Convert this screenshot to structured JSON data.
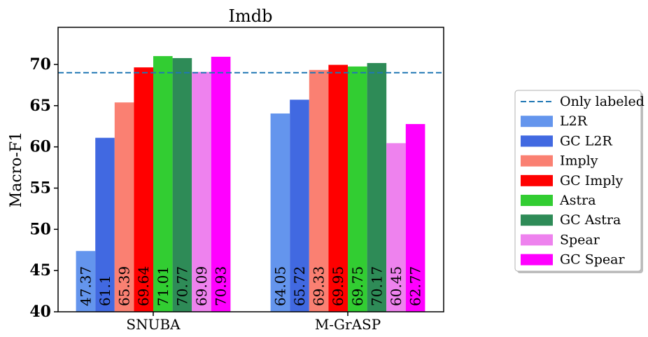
{
  "chart_data": {
    "type": "bar",
    "title": "Imdb",
    "xlabel": "",
    "ylabel": "Macro-F1",
    "ylim": [
      40,
      74.5
    ],
    "yticks": [
      40,
      45,
      50,
      55,
      60,
      65,
      70
    ],
    "categories": [
      "SNUBA",
      "M-GrASP"
    ],
    "series": [
      {
        "name": "L2R",
        "color": "#6495ed",
        "values": [
          47.37,
          64.05
        ],
        "labels": [
          "47.37",
          "64.05"
        ]
      },
      {
        "name": "GC L2R",
        "color": "#4169e1",
        "values": [
          61.1,
          65.72
        ],
        "labels": [
          "61.1",
          "65.72"
        ]
      },
      {
        "name": "Imply",
        "color": "#fa8072",
        "values": [
          65.39,
          69.33
        ],
        "labels": [
          "65.39",
          "69.33"
        ]
      },
      {
        "name": "GC Imply",
        "color": "#ff0000",
        "values": [
          69.64,
          69.95
        ],
        "labels": [
          "69.64",
          "69.95"
        ]
      },
      {
        "name": "Astra",
        "color": "#32cd32",
        "values": [
          71.01,
          69.75
        ],
        "labels": [
          "71.01",
          "69.75"
        ]
      },
      {
        "name": "GC Astra",
        "color": "#2e8b57",
        "values": [
          70.77,
          70.17
        ],
        "labels": [
          "70.77",
          "70.17"
        ]
      },
      {
        "name": "Spear",
        "color": "#ee82ee",
        "values": [
          69.09,
          60.45
        ],
        "labels": [
          "69.09",
          "60.45"
        ]
      },
      {
        "name": "GC Spear",
        "color": "#ff00ff",
        "values": [
          70.93,
          62.77
        ],
        "labels": [
          "70.93",
          "62.77"
        ]
      }
    ],
    "reference_line": {
      "name": "Only labeled",
      "value": 69.0,
      "color": "#1f77b4",
      "style": "dashed"
    },
    "legend_position": "right"
  }
}
